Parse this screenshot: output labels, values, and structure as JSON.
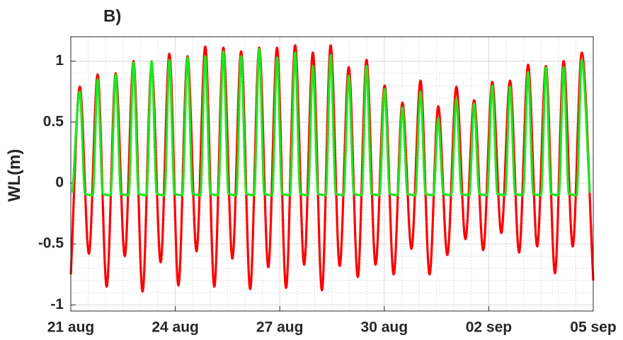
{
  "chart_data": {
    "type": "line",
    "title": "B)",
    "ylabel": "WL(m)",
    "xlim": [
      21,
      36
    ],
    "xticks": [
      {
        "value": 21,
        "label": "21 aug"
      },
      {
        "value": 24,
        "label": "24 aug"
      },
      {
        "value": 27,
        "label": "27 aug"
      },
      {
        "value": 30,
        "label": "30 aug"
      },
      {
        "value": 33,
        "label": "02 sep"
      },
      {
        "value": 36,
        "label": "05 sep"
      }
    ],
    "ylim": [
      -1.05,
      1.2
    ],
    "yticks": [
      -1,
      -0.5,
      0,
      0.5,
      1
    ],
    "grid": true,
    "minor_grid": true,
    "series": [
      {
        "color": "#ff0000",
        "x": [
          21,
          21.26,
          21.52,
          21.77,
          22.03,
          22.29,
          22.55,
          22.8,
          23.06,
          23.32,
          23.58,
          23.83,
          24.09,
          24.35,
          24.61,
          24.86,
          25.12,
          25.38,
          25.64,
          25.89,
          26.15,
          26.41,
          26.67,
          26.92,
          27.18,
          27.44,
          27.7,
          27.95,
          28.21,
          28.46,
          28.72,
          28.98,
          29.24,
          29.49,
          29.75,
          30.01,
          30.27,
          30.52,
          30.78,
          31.04,
          31.3,
          31.55,
          31.81,
          32.07,
          32.33,
          32.58,
          32.84,
          33.1,
          33.36,
          33.61,
          33.87,
          34.13,
          34.39,
          34.64,
          34.9,
          35.15,
          35.41,
          35.67,
          36
        ],
        "values": [
          -0.75,
          0.79,
          -0.58,
          0.89,
          -0.85,
          0.9,
          -0.6,
          1.0,
          -0.89,
          0.97,
          -0.65,
          1.06,
          -0.84,
          1.04,
          -0.56,
          1.12,
          -0.85,
          1.11,
          -0.62,
          1.08,
          -0.87,
          1.11,
          -0.69,
          1.11,
          -0.86,
          1.13,
          -0.67,
          1.07,
          -0.88,
          1.13,
          -0.68,
          0.95,
          -0.77,
          1.01,
          -0.67,
          0.8,
          -0.75,
          0.66,
          -0.54,
          0.84,
          -0.75,
          0.63,
          -0.59,
          0.79,
          -0.46,
          0.68,
          -0.55,
          0.83,
          -0.41,
          0.84,
          -0.57,
          0.97,
          -0.52,
          0.96,
          -0.74,
          1.0,
          -0.52,
          1.07,
          -0.8
        ]
      },
      {
        "color": "#1ee61e",
        "x": [
          21.05,
          21.26,
          21.41,
          21.63,
          21.77,
          21.92,
          22.14,
          22.29,
          22.44,
          22.66,
          22.8,
          22.95,
          23.17,
          23.32,
          23.47,
          23.69,
          23.83,
          23.98,
          24.2,
          24.35,
          24.5,
          24.72,
          24.86,
          25.01,
          25.23,
          25.38,
          25.53,
          25.75,
          25.89,
          26.04,
          26.26,
          26.41,
          26.56,
          26.78,
          26.92,
          27.07,
          27.29,
          27.44,
          27.59,
          27.81,
          27.95,
          28.1,
          28.32,
          28.46,
          28.61,
          28.83,
          28.98,
          29.13,
          29.35,
          29.49,
          29.64,
          29.86,
          30.01,
          30.16,
          30.38,
          30.52,
          30.67,
          30.89,
          31.04,
          31.19,
          31.41,
          31.55,
          31.7,
          31.92,
          32.07,
          32.22,
          32.44,
          32.58,
          32.73,
          32.95,
          33.1,
          33.25,
          33.47,
          33.61,
          33.76,
          33.98,
          34.13,
          34.28,
          34.5,
          34.64,
          34.79,
          35.01,
          35.15,
          35.3,
          35.52,
          35.67,
          35.9
        ],
        "values": [
          -0.08,
          0.75,
          -0.09,
          -0.1,
          0.85,
          -0.09,
          -0.1,
          0.89,
          -0.09,
          -0.1,
          0.99,
          -0.09,
          -0.1,
          1.0,
          -0.09,
          -0.1,
          1.01,
          -0.09,
          -0.1,
          1.03,
          -0.09,
          -0.1,
          1.04,
          -0.09,
          -0.1,
          1.08,
          -0.09,
          -0.1,
          1.04,
          -0.09,
          -0.1,
          1.1,
          -0.09,
          -0.1,
          1.03,
          -0.09,
          -0.1,
          1.07,
          -0.09,
          -0.1,
          0.96,
          -0.09,
          -0.1,
          1.05,
          -0.09,
          -0.1,
          0.88,
          -0.09,
          -0.1,
          0.96,
          -0.09,
          -0.1,
          0.77,
          -0.09,
          -0.1,
          0.62,
          -0.09,
          -0.1,
          0.75,
          -0.09,
          -0.1,
          0.53,
          -0.09,
          -0.1,
          0.69,
          -0.09,
          -0.1,
          0.65,
          -0.09,
          -0.1,
          0.8,
          -0.09,
          -0.1,
          0.79,
          -0.09,
          -0.1,
          0.91,
          -0.09,
          -0.1,
          0.95,
          -0.09,
          -0.1,
          0.95,
          -0.09,
          -0.1,
          1.01,
          -0.08
        ]
      }
    ]
  }
}
